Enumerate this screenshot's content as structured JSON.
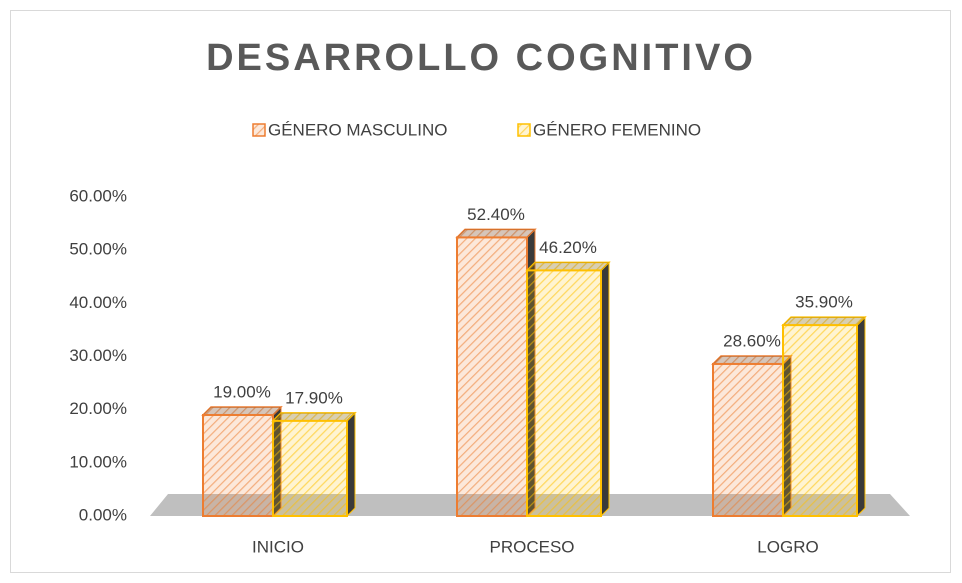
{
  "chart_data": {
    "type": "bar3d",
    "title": "DESARROLLO COGNITIVO",
    "categories": [
      "INICIO",
      "PROCESO",
      "LOGRO"
    ],
    "series": [
      {
        "name": "GÉNERO MASCULINO",
        "color": "#ed7d31",
        "values": [
          19.0,
          52.4,
          28.6
        ],
        "value_labels": [
          "19.00%",
          "52.40%",
          "28.60%"
        ]
      },
      {
        "name": "GÉNERO FEMENINO",
        "color": "#ffc000",
        "values": [
          17.9,
          46.2,
          35.9
        ],
        "value_labels": [
          "17.90%",
          "46.20%",
          "35.90%"
        ]
      }
    ],
    "ylim": [
      0,
      60
    ],
    "yticks": [
      {
        "value": 0,
        "label": "0.00%"
      },
      {
        "value": 10,
        "label": "10.00%"
      },
      {
        "value": 20,
        "label": "20.00%"
      },
      {
        "value": 30,
        "label": "30.00%"
      },
      {
        "value": 40,
        "label": "40.00%"
      },
      {
        "value": 50,
        "label": "50.00%"
      },
      {
        "value": 60,
        "label": "60.00%"
      }
    ],
    "legend": "top",
    "grid": false
  }
}
